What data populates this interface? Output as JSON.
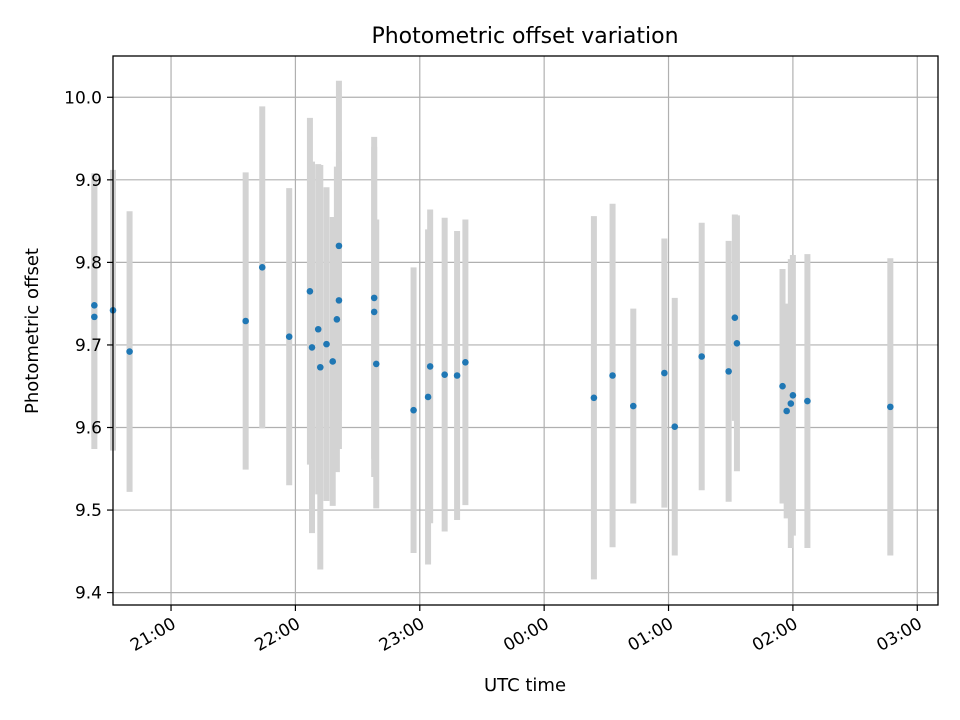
{
  "chart_data": {
    "type": "scatter",
    "title": "Photometric offset variation",
    "xlabel": "UTC time",
    "ylabel": "Photometric offset",
    "grid": true,
    "x_start": "20:00",
    "xlim": [
      "20:32",
      "03:10"
    ],
    "ylim": [
      9.385,
      10.05
    ],
    "xticks": [
      "21:00",
      "22:00",
      "23:00",
      "00:00",
      "01:00",
      "02:00",
      "03:00"
    ],
    "yticks": [
      "9.4",
      "9.5",
      "9.6",
      "9.7",
      "9.8",
      "9.9",
      "10.0"
    ],
    "colors": {
      "point": "#1f77b4",
      "errorbar": "#d3d3d3",
      "grid": "#b0b0b0"
    },
    "points": [
      {
        "x": "20:23",
        "y": 9.734,
        "err": 0.16
      },
      {
        "x": "20:23",
        "y": 9.748,
        "err": 0.16
      },
      {
        "x": "20:32",
        "y": 9.742,
        "err": 0.17
      },
      {
        "x": "20:40",
        "y": 9.692,
        "err": 0.17
      },
      {
        "x": "21:36",
        "y": 9.729,
        "err": 0.18
      },
      {
        "x": "21:44",
        "y": 9.794,
        "err": 0.195
      },
      {
        "x": "21:57",
        "y": 9.71,
        "err": 0.18
      },
      {
        "x": "22:07",
        "y": 9.765,
        "err": 0.21
      },
      {
        "x": "22:08",
        "y": 9.697,
        "err": 0.225
      },
      {
        "x": "22:11",
        "y": 9.719,
        "err": 0.2
      },
      {
        "x": "22:12",
        "y": 9.673,
        "err": 0.245
      },
      {
        "x": "22:15",
        "y": 9.701,
        "err": 0.19
      },
      {
        "x": "22:18",
        "y": 9.68,
        "err": 0.175
      },
      {
        "x": "22:20",
        "y": 9.731,
        "err": 0.185
      },
      {
        "x": "22:21",
        "y": 9.82,
        "err": 0.2
      },
      {
        "x": "22:21",
        "y": 9.754,
        "err": 0.18
      },
      {
        "x": "22:38",
        "y": 9.757,
        "err": 0.195
      },
      {
        "x": "22:38",
        "y": 9.74,
        "err": 0.2
      },
      {
        "x": "22:39",
        "y": 9.677,
        "err": 0.175
      },
      {
        "x": "22:57",
        "y": 9.621,
        "err": 0.173
      },
      {
        "x": "23:04",
        "y": 9.637,
        "err": 0.203
      },
      {
        "x": "23:05",
        "y": 9.674,
        "err": 0.19
      },
      {
        "x": "23:12",
        "y": 9.664,
        "err": 0.19
      },
      {
        "x": "23:18",
        "y": 9.663,
        "err": 0.175
      },
      {
        "x": "23:22",
        "y": 9.679,
        "err": 0.173
      },
      {
        "x": "00:24",
        "y": 9.636,
        "err": 0.22
      },
      {
        "x": "00:33",
        "y": 9.663,
        "err": 0.208
      },
      {
        "x": "00:43",
        "y": 9.626,
        "err": 0.118
      },
      {
        "x": "00:58",
        "y": 9.666,
        "err": 0.163
      },
      {
        "x": "01:03",
        "y": 9.601,
        "err": 0.156
      },
      {
        "x": "01:16",
        "y": 9.686,
        "err": 0.162
      },
      {
        "x": "01:29",
        "y": 9.668,
        "err": 0.158
      },
      {
        "x": "01:32",
        "y": 9.733,
        "err": 0.125
      },
      {
        "x": "01:33",
        "y": 9.702,
        "err": 0.155
      },
      {
        "x": "01:55",
        "y": 9.65,
        "err": 0.142
      },
      {
        "x": "01:57",
        "y": 9.62,
        "err": 0.13
      },
      {
        "x": "01:59",
        "y": 9.629,
        "err": 0.175
      },
      {
        "x": "02:00",
        "y": 9.639,
        "err": 0.17
      },
      {
        "x": "02:07",
        "y": 9.632,
        "err": 0.178
      },
      {
        "x": "02:47",
        "y": 9.625,
        "err": 0.18
      }
    ]
  }
}
